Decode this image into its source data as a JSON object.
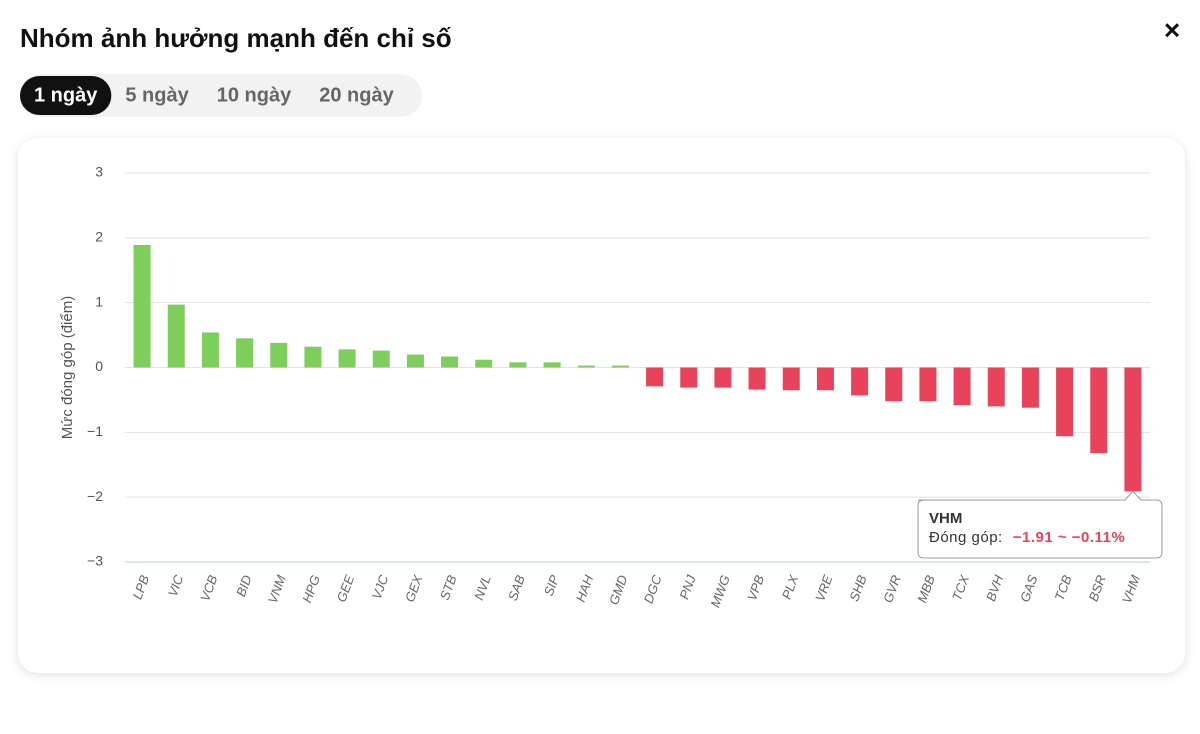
{
  "title": "Nhóm ảnh hưởng mạnh đến chỉ số",
  "close": "×",
  "tabs": [
    "1 ngày",
    "5 ngày",
    "10 ngày",
    "20 ngày"
  ],
  "active_tab": 0,
  "chart_data": {
    "type": "bar",
    "y_label": "Mức đóng góp (điểm)",
    "categories": [
      "LPB",
      "VIC",
      "VCB",
      "BID",
      "VNM",
      "HPG",
      "GEE",
      "VJC",
      "GEX",
      "STB",
      "NVL",
      "SAB",
      "SIP",
      "HAH",
      "GMD",
      "DGC",
      "PNJ",
      "MWG",
      "VPB",
      "PLX",
      "VRE",
      "SHB",
      "GVR",
      "MBB",
      "TCX",
      "BVH",
      "GAS",
      "TCB",
      "BSR",
      "VHM"
    ],
    "values": [
      1.89,
      0.97,
      0.54,
      0.45,
      0.38,
      0.32,
      0.28,
      0.26,
      0.2,
      0.17,
      0.12,
      0.08,
      0.08,
      0.03,
      0.03,
      -0.29,
      -0.31,
      -0.31,
      -0.34,
      -0.35,
      -0.35,
      -0.43,
      -0.52,
      -0.52,
      -0.58,
      -0.6,
      -0.62,
      -1.06,
      -1.32,
      -1.91
    ],
    "colors": {
      "positive": "#7dce5b",
      "negative": "#e8435a"
    },
    "ylim": [
      -3,
      3
    ],
    "yticks": [
      {
        "value": -3,
        "label": "−3"
      },
      {
        "value": -2,
        "label": "−2"
      },
      {
        "value": -1,
        "label": "−1"
      },
      0,
      1,
      2,
      3
    ],
    "grid": true,
    "tooltip": {
      "title": "VHM",
      "label": "Đóng góp:",
      "value": "−1.91 ~ −0.11%"
    }
  }
}
